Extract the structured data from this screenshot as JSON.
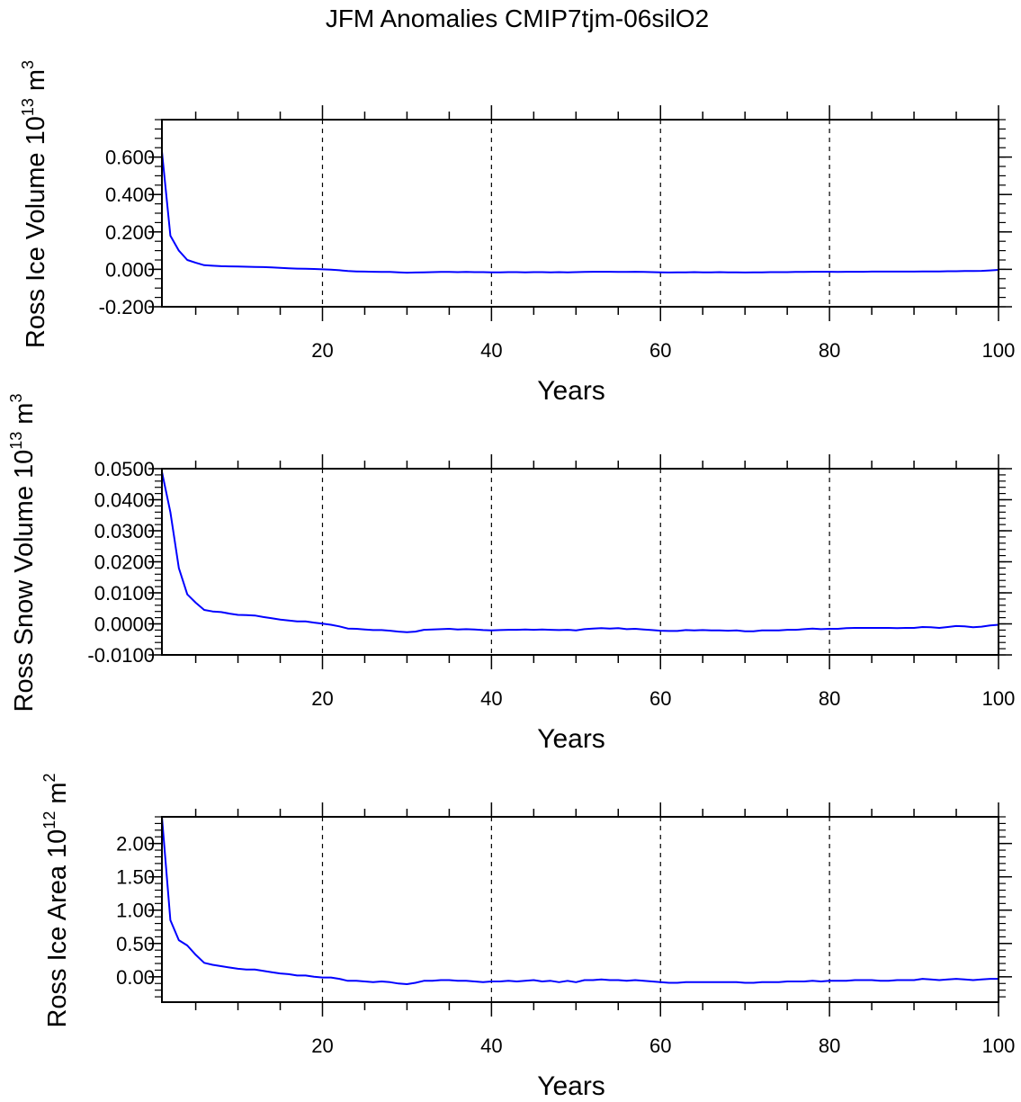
{
  "chart_data": {
    "title": "JFM Anomalies CMIP7tjm-06silO2",
    "line_color": "#0000ff",
    "panels": [
      {
        "type": "line",
        "xlabel": "Years",
        "ylabel": {
          "text": "Ross Ice Volume 10",
          "exp": "13",
          "unit": "m",
          "unit_exp": "3"
        },
        "xlim": [
          1,
          100
        ],
        "ylim": [
          -0.2,
          0.8
        ],
        "xticks": [
          20,
          40,
          60,
          80,
          100
        ],
        "xtick_labels": [
          "20",
          "40",
          "60",
          "80",
          "100"
        ],
        "yticks": [
          -0.2,
          0.0,
          0.2,
          0.4,
          0.6
        ],
        "ytick_labels": [
          "-0.200",
          "0.000",
          "0.200",
          "0.400",
          "0.600"
        ],
        "yminor": 0.05,
        "gridlines_x": [
          20,
          40,
          60,
          80
        ],
        "values": [
          0.63,
          0.18,
          0.1,
          0.05,
          0.035,
          0.022,
          0.019,
          0.017,
          0.016,
          0.015,
          0.014,
          0.013,
          0.012,
          0.01,
          0.008,
          0.006,
          0.004,
          0.003,
          0.002,
          0.0,
          -0.002,
          -0.005,
          -0.009,
          -0.011,
          -0.012,
          -0.013,
          -0.014,
          -0.014,
          -0.016,
          -0.018,
          -0.017,
          -0.016,
          -0.015,
          -0.014,
          -0.014,
          -0.015,
          -0.014,
          -0.015,
          -0.015,
          -0.016,
          -0.016,
          -0.015,
          -0.015,
          -0.016,
          -0.015,
          -0.015,
          -0.016,
          -0.015,
          -0.016,
          -0.015,
          -0.014,
          -0.013,
          -0.013,
          -0.013,
          -0.014,
          -0.014,
          -0.013,
          -0.014,
          -0.015,
          -0.016,
          -0.017,
          -0.016,
          -0.016,
          -0.015,
          -0.016,
          -0.016,
          -0.015,
          -0.016,
          -0.016,
          -0.017,
          -0.016,
          -0.016,
          -0.015,
          -0.015,
          -0.015,
          -0.014,
          -0.014,
          -0.013,
          -0.013,
          -0.013,
          -0.014,
          -0.013,
          -0.013,
          -0.013,
          -0.012,
          -0.012,
          -0.012,
          -0.012,
          -0.012,
          -0.012,
          -0.011,
          -0.011,
          -0.011,
          -0.01,
          -0.01,
          -0.009,
          -0.009,
          -0.008,
          -0.006,
          -0.003
        ]
      },
      {
        "type": "line",
        "xlabel": "Years",
        "ylabel": {
          "text": "Ross Snow Volume 10",
          "exp": "13",
          "unit": "m",
          "unit_exp": "3"
        },
        "xlim": [
          1,
          100
        ],
        "ylim": [
          -0.01,
          0.05
        ],
        "xticks": [
          20,
          40,
          60,
          80,
          100
        ],
        "xtick_labels": [
          "20",
          "40",
          "60",
          "80",
          "100"
        ],
        "yticks": [
          -0.01,
          0.0,
          0.01,
          0.02,
          0.03,
          0.04,
          0.05
        ],
        "ytick_labels": [
          "-0.0100",
          "0.0000",
          "0.0100",
          "0.0200",
          "0.0300",
          "0.0400",
          "0.0500"
        ],
        "yminor": 0.002,
        "gridlines_x": [
          20,
          40,
          60,
          80
        ],
        "values": [
          0.049,
          0.036,
          0.018,
          0.0095,
          0.0068,
          0.0045,
          0.004,
          0.0038,
          0.0033,
          0.0029,
          0.0028,
          0.0027,
          0.0022,
          0.0018,
          0.0014,
          0.0011,
          0.0008,
          0.0008,
          0.0004,
          0.0001,
          -0.0003,
          -0.0008,
          -0.0015,
          -0.0016,
          -0.0018,
          -0.002,
          -0.002,
          -0.0022,
          -0.0025,
          -0.0027,
          -0.0025,
          -0.0019,
          -0.0018,
          -0.0017,
          -0.0016,
          -0.0018,
          -0.0017,
          -0.0018,
          -0.002,
          -0.0021,
          -0.002,
          -0.0019,
          -0.0019,
          -0.0018,
          -0.0019,
          -0.0018,
          -0.0019,
          -0.002,
          -0.0019,
          -0.0021,
          -0.0017,
          -0.0015,
          -0.0014,
          -0.0015,
          -0.0014,
          -0.0017,
          -0.0016,
          -0.0018,
          -0.002,
          -0.0022,
          -0.0023,
          -0.0023,
          -0.002,
          -0.0021,
          -0.002,
          -0.0021,
          -0.0021,
          -0.0022,
          -0.0021,
          -0.0024,
          -0.0024,
          -0.0021,
          -0.0021,
          -0.0021,
          -0.0019,
          -0.0019,
          -0.0017,
          -0.0015,
          -0.0017,
          -0.0016,
          -0.0016,
          -0.0014,
          -0.0013,
          -0.0013,
          -0.0013,
          -0.0013,
          -0.0013,
          -0.0014,
          -0.0013,
          -0.0013,
          -0.001,
          -0.0011,
          -0.0013,
          -0.001,
          -0.0007,
          -0.0008,
          -0.0011,
          -0.0009,
          -0.0005,
          -0.0003
        ]
      },
      {
        "type": "line",
        "xlabel": "Years",
        "ylabel": {
          "text": "Ross Ice Area 10",
          "exp": "12",
          "unit": "m",
          "unit_exp": "2"
        },
        "xlim": [
          1,
          100
        ],
        "ylim": [
          -0.38,
          2.4
        ],
        "xticks": [
          20,
          40,
          60,
          80,
          100
        ],
        "xtick_labels": [
          "20",
          "40",
          "60",
          "80",
          "100"
        ],
        "yticks": [
          0.0,
          0.5,
          1.0,
          1.5,
          2.0
        ],
        "ytick_labels": [
          "0.00",
          "0.50",
          "1.00",
          "1.50",
          "2.00"
        ],
        "yminor": 0.1,
        "gridlines_x": [
          20,
          40,
          60,
          80
        ],
        "values": [
          2.4,
          0.85,
          0.55,
          0.47,
          0.33,
          0.21,
          0.18,
          0.16,
          0.14,
          0.12,
          0.11,
          0.11,
          0.09,
          0.07,
          0.05,
          0.04,
          0.02,
          0.02,
          0.0,
          -0.01,
          -0.01,
          -0.03,
          -0.06,
          -0.06,
          -0.07,
          -0.08,
          -0.07,
          -0.08,
          -0.1,
          -0.11,
          -0.09,
          -0.06,
          -0.06,
          -0.05,
          -0.05,
          -0.06,
          -0.06,
          -0.07,
          -0.08,
          -0.07,
          -0.07,
          -0.06,
          -0.07,
          -0.06,
          -0.05,
          -0.07,
          -0.06,
          -0.08,
          -0.06,
          -0.08,
          -0.05,
          -0.05,
          -0.04,
          -0.05,
          -0.05,
          -0.06,
          -0.05,
          -0.06,
          -0.07,
          -0.08,
          -0.09,
          -0.09,
          -0.08,
          -0.08,
          -0.08,
          -0.08,
          -0.08,
          -0.08,
          -0.08,
          -0.09,
          -0.09,
          -0.08,
          -0.08,
          -0.08,
          -0.07,
          -0.07,
          -0.07,
          -0.06,
          -0.07,
          -0.06,
          -0.06,
          -0.06,
          -0.05,
          -0.05,
          -0.05,
          -0.06,
          -0.06,
          -0.05,
          -0.05,
          -0.05,
          -0.03,
          -0.04,
          -0.05,
          -0.04,
          -0.03,
          -0.04,
          -0.05,
          -0.04,
          -0.03,
          -0.03
        ]
      }
    ]
  }
}
